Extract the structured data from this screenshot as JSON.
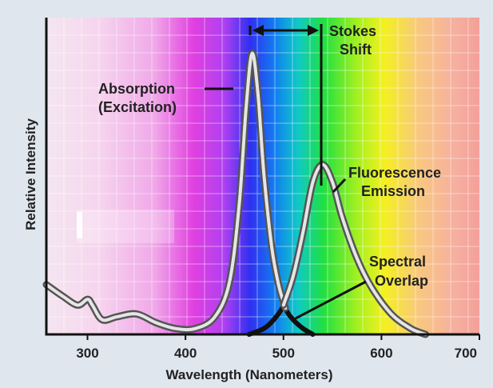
{
  "chart_data": {
    "type": "line",
    "xlabel": "Wavelength (Nanometers)",
    "ylabel": "Relative Intensity",
    "xlim": [
      258,
      700
    ],
    "ylim": [
      0,
      1
    ],
    "xticks": [
      "300",
      "400",
      "500",
      "600",
      "700"
    ],
    "grid": true,
    "series": [
      {
        "name": "Absorption (Excitation)",
        "x": [
          258,
          275,
          290,
          300,
          305,
          315,
          330,
          350,
          370,
          390,
          410,
          430,
          445,
          455,
          462,
          468,
          474,
          480,
          488,
          495,
          502,
          510,
          520,
          530
        ],
        "y": [
          0.17,
          0.13,
          0.1,
          0.12,
          0.1,
          0.05,
          0.06,
          0.07,
          0.04,
          0.02,
          0.02,
          0.06,
          0.18,
          0.45,
          0.78,
          0.96,
          0.82,
          0.55,
          0.3,
          0.17,
          0.09,
          0.05,
          0.02,
          0.0
        ]
      },
      {
        "name": "Fluorescence Emission",
        "x": [
          465,
          480,
          490,
          500,
          510,
          520,
          530,
          540,
          550,
          560,
          575,
          590,
          610,
          630,
          645
        ],
        "y": [
          0.0,
          0.02,
          0.05,
          0.1,
          0.2,
          0.35,
          0.52,
          0.58,
          0.52,
          0.4,
          0.26,
          0.16,
          0.07,
          0.02,
          0.0
        ]
      }
    ],
    "annotations": {
      "absorption_line1": "Absorption",
      "absorption_line2": "(Excitation)",
      "emission_line1": "Fluorescence",
      "emission_line2": "Emission",
      "stokes_line1": "Stokes",
      "stokes_line2": "Shift",
      "overlap_line1": "Spectral",
      "overlap_line2": "Overlap"
    },
    "colors": {
      "curve_outline": "#555555",
      "curve_inner": "#e6e6e6",
      "overlap_tail": "#111111",
      "frame": "#111111",
      "background": "#dfe6ee"
    }
  }
}
